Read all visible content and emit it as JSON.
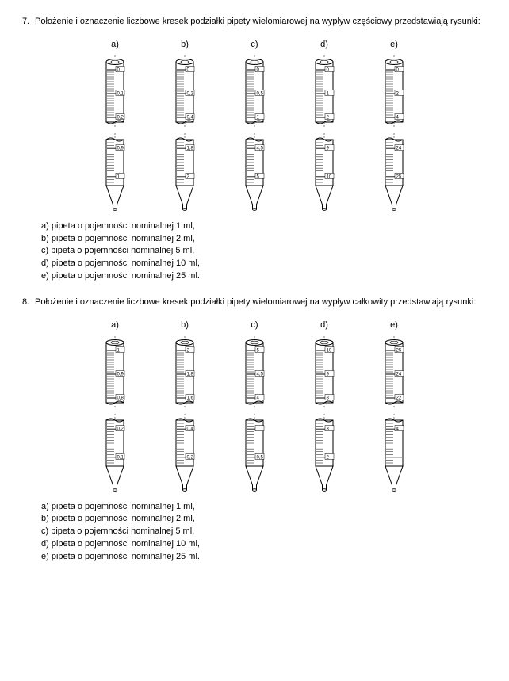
{
  "sections": [
    {
      "num": "7.",
      "text": "Położenie i oznaczenie liczbowe kresek podziałki pipety wielomiarowej na wypływ częściowy przedstawiają rysunki:",
      "columns": [
        {
          "label": "a)",
          "top": {
            "marks": [
              "0",
              "0,1",
              "0,2"
            ]
          },
          "bottom": {
            "marks": [
              "0,9",
              "1"
            ]
          }
        },
        {
          "label": "b)",
          "top": {
            "marks": [
              "0",
              "0,2",
              "0,4"
            ]
          },
          "bottom": {
            "marks": [
              "1,8",
              "2"
            ]
          }
        },
        {
          "label": "c)",
          "top": {
            "marks": [
              "0",
              "0,5",
              "1"
            ]
          },
          "bottom": {
            "marks": [
              "4,5",
              "5"
            ]
          }
        },
        {
          "label": "d)",
          "top": {
            "marks": [
              "0",
              "1",
              "2"
            ]
          },
          "bottom": {
            "marks": [
              "9",
              "10"
            ]
          }
        },
        {
          "label": "e)",
          "top": {
            "marks": [
              "0",
              "2",
              "4"
            ]
          },
          "bottom": {
            "marks": [
              "24",
              "25"
            ]
          }
        }
      ],
      "legend": [
        "a) pipeta o pojemności nominalnej 1 ml,",
        "b) pipeta o pojemności nominalnej 2 ml,",
        "c) pipeta o pojemności nominalnej 5 ml,",
        "d) pipeta o pojemności nominalnej 10 ml,",
        "e) pipeta o pojemności nominalnej 25 ml."
      ]
    },
    {
      "num": "8.",
      "text": "Położenie i oznaczenie liczbowe kresek podziałki pipety wielomiarowej na wypływ całkowity przedstawiają rysunki:",
      "columns": [
        {
          "label": "a)",
          "top": {
            "marks": [
              "1",
              "0,9",
              "0,8"
            ]
          },
          "bottom": {
            "marks": [
              "0,2",
              "0,1"
            ]
          }
        },
        {
          "label": "b)",
          "top": {
            "marks": [
              "2",
              "1,8",
              "1,6"
            ]
          },
          "bottom": {
            "marks": [
              "0,4",
              "0,2"
            ]
          }
        },
        {
          "label": "c)",
          "top": {
            "marks": [
              "5",
              "4,5",
              "4"
            ]
          },
          "bottom": {
            "marks": [
              "1",
              "0,5"
            ]
          }
        },
        {
          "label": "d)",
          "top": {
            "marks": [
              "10",
              "9",
              "8"
            ]
          },
          "bottom": {
            "marks": [
              "3",
              "2"
            ]
          }
        },
        {
          "label": "e)",
          "top": {
            "marks": [
              "25",
              "24",
              "22"
            ]
          },
          "bottom": {
            "marks": [
              "4",
              ""
            ]
          }
        }
      ],
      "legend": [
        "a) pipeta o pojemności nominalnej 1 ml,",
        "b) pipeta o pojemności nominalnej 2 ml,",
        "c) pipeta o pojemności nominalnej 5 ml,",
        "d) pipeta o pojemności nominalnej 10 ml,",
        "e) pipeta o pojemności nominalnej 25 ml."
      ]
    }
  ],
  "svg": {
    "stroke": "#000",
    "tube_fill": "#fff",
    "mark_font": "6px"
  }
}
